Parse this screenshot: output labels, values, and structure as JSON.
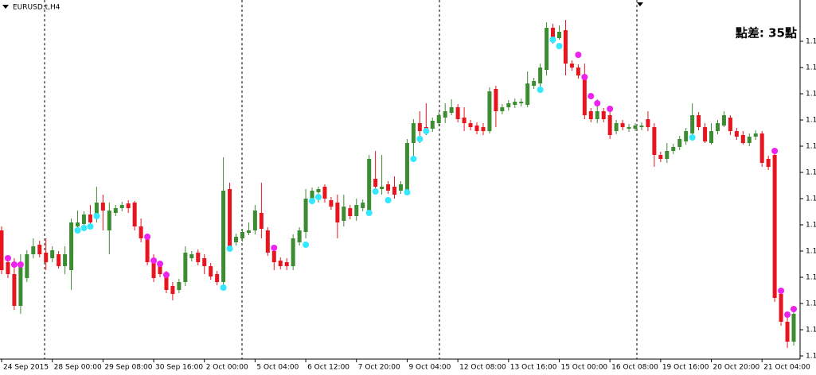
{
  "chart_data": {
    "type": "candlestick",
    "title": "EURUSD.t,H4",
    "annotation": "點差: 35點",
    "up_color": "#3c8c32",
    "down_color": "#e8141e",
    "annotation_color": "#1e7d1e",
    "ylim": [
      1.105,
      1.1502
    ],
    "yticks": [
      {
        "value": 1.1054,
        "label": "1.1"
      },
      {
        "value": 1.1087,
        "label": "1.1"
      },
      {
        "value": 1.112,
        "label": "1.1"
      },
      {
        "value": 1.1153,
        "label": "1.1"
      },
      {
        "value": 1.1186,
        "label": "1.1"
      },
      {
        "value": 1.1219,
        "label": "1.1"
      },
      {
        "value": 1.1252,
        "label": "1.1"
      },
      {
        "value": 1.1285,
        "label": "1.1"
      },
      {
        "value": 1.1318,
        "label": "1.1"
      },
      {
        "value": 1.1351,
        "label": "1.1"
      },
      {
        "value": 1.1384,
        "label": "1.1"
      },
      {
        "value": 1.1417,
        "label": "1.1"
      },
      {
        "value": 1.145,
        "label": "1.1"
      }
    ],
    "categories": [
      "24 Sep 2015",
      null,
      null,
      null,
      null,
      null,
      null,
      null,
      "28 Sep 00:00",
      null,
      null,
      null,
      null,
      null,
      null,
      null,
      "29 Sep 08:00",
      null,
      null,
      null,
      null,
      null,
      null,
      null,
      "30 Sep 16:00",
      null,
      null,
      null,
      null,
      null,
      null,
      null,
      "2 Oct 00:00",
      null,
      null,
      null,
      null,
      null,
      null,
      null,
      "5 Oct 04:00",
      null,
      null,
      null,
      null,
      null,
      null,
      null,
      "6 Oct 12:00",
      null,
      null,
      null,
      null,
      null,
      null,
      null,
      "7 Oct 20:00",
      null,
      null,
      null,
      null,
      null,
      null,
      null,
      "9 Oct 04:00",
      null,
      null,
      null,
      null,
      null,
      null,
      null,
      "12 Oct 08:00",
      null,
      null,
      null,
      null,
      null,
      null,
      null,
      "13 Oct 16:00",
      null,
      null,
      null,
      null,
      null,
      null,
      null,
      "15 Oct 00:00",
      null,
      null,
      null,
      null,
      null,
      null,
      null,
      "16 Oct 08:00",
      null,
      null,
      null,
      null,
      null,
      null,
      null,
      "19 Oct 16:00",
      null,
      null,
      null,
      null,
      null,
      null,
      null,
      "20 Oct 20:00",
      null,
      null,
      null,
      null,
      null,
      null,
      null,
      "21 Oct 04:00",
      null,
      null,
      null,
      null,
      null
    ],
    "open": [
      1.1212,
      1.1172,
      1.1157,
      1.1117,
      1.1152,
      1.1182,
      1.1194,
      1.1184,
      1.1177,
      1.1182,
      1.1167,
      1.1162,
      1.1217,
      1.122,
      1.1232,
      1.1227,
      1.1247,
      1.1212,
      1.1234,
      1.124,
      1.1246,
      1.1247,
      1.1217,
      1.1202,
      1.1172,
      1.1167,
      1.1157,
      1.1142,
      1.1137,
      1.1147,
      1.1177,
      1.1184,
      1.1177,
      1.1167,
      1.1157,
      1.1147,
      1.1264,
      1.1197,
      1.1202,
      1.1209,
      1.1212,
      1.1234,
      1.1212,
      1.1186,
      1.1174,
      1.1172,
      1.1167,
      1.1197,
      1.121,
      1.125,
      1.126,
      1.1267,
      1.125,
      1.1247,
      1.1224,
      1.124,
      1.123,
      1.124,
      1.1237,
      1.1277,
      1.1264,
      1.127,
      1.1267,
      1.1262,
      1.1262,
      1.1322,
      1.1347,
      1.1342,
      1.134,
      1.1347,
      1.1354,
      1.136,
      1.1367,
      1.1354,
      1.1347,
      1.1344,
      1.1342,
      1.1337,
      1.139,
      1.1362,
      1.1367,
      1.137,
      1.1372,
      1.137,
      1.1394,
      1.1397,
      1.1414,
      1.1467,
      1.1454,
      1.1464,
      1.1422,
      1.1417,
      1.1407,
      1.1362,
      1.1352,
      1.1362,
      1.1357,
      1.1337,
      1.1347,
      1.134,
      1.134,
      1.1342,
      1.1352,
      1.1342,
      1.1307,
      1.1302,
      1.1312,
      1.1317,
      1.1324,
      1.1334,
      1.1357,
      1.1342,
      1.1322,
      1.1337,
      1.1344,
      1.1354,
      1.1337,
      1.1332,
      1.1322,
      1.133,
      1.1334,
      1.1302,
      1.1307,
      1.1132,
      1.1097,
      1.1072
    ],
    "high": [
      1.1217,
      1.1177,
      1.1177,
      1.1182,
      1.1187,
      1.1202,
      1.1199,
      1.1202,
      1.1192,
      1.1186,
      1.1192,
      1.1227,
      1.1237,
      1.1236,
      1.1244,
      1.1267,
      1.1257,
      1.1247,
      1.1244,
      1.1248,
      1.125,
      1.1249,
      1.1227,
      1.1206,
      1.1182,
      1.1171,
      1.1161,
      1.1147,
      1.1151,
      1.1192,
      1.1186,
      1.1188,
      1.1182,
      1.1171,
      1.1161,
      1.1304,
      1.1272,
      1.1208,
      1.1214,
      1.1222,
      1.1244,
      1.1272,
      1.1216,
      1.1192,
      1.1178,
      1.1177,
      1.1207,
      1.1216,
      1.1264,
      1.1266,
      1.1267,
      1.127,
      1.1254,
      1.1257,
      1.1257,
      1.1244,
      1.1252,
      1.1251,
      1.1307,
      1.1312,
      1.1307,
      1.1274,
      1.128,
      1.1274,
      1.1327,
      1.1352,
      1.1362,
      1.1372,
      1.1354,
      1.1361,
      1.1372,
      1.1377,
      1.1371,
      1.1367,
      1.1351,
      1.1348,
      1.1347,
      1.1392,
      1.1394,
      1.1371,
      1.1376,
      1.1378,
      1.1378,
      1.1412,
      1.1404,
      1.1422,
      1.1474,
      1.1472,
      1.147,
      1.1477,
      1.1426,
      1.1421,
      1.1422,
      1.1366,
      1.1377,
      1.1366,
      1.1367,
      1.1351,
      1.1351,
      1.1346,
      1.1347,
      1.1348,
      1.1362,
      1.1347,
      1.1311,
      1.1322,
      1.1321,
      1.1331,
      1.1341,
      1.1372,
      1.1361,
      1.1347,
      1.1347,
      1.1351,
      1.1362,
      1.1357,
      1.1341,
      1.1337,
      1.1334,
      1.1338,
      1.1337,
      1.1306,
      1.1312,
      1.1137,
      1.1107,
      1.1112
    ],
    "low": [
      1.1157,
      1.1152,
      1.1112,
      1.1107,
      1.1147,
      1.1177,
      1.1178,
      1.1162,
      1.1172,
      1.1164,
      1.1157,
      1.1137,
      1.1212,
      1.1216,
      1.1217,
      1.1222,
      1.1212,
      1.1182,
      1.123,
      1.1236,
      1.1234,
      1.1212,
      1.1197,
      1.1168,
      1.1147,
      1.1153,
      1.1133,
      1.1124,
      1.1133,
      1.1142,
      1.1173,
      1.1168,
      1.1157,
      1.115,
      1.1143,
      1.1142,
      1.1187,
      1.1193,
      1.1198,
      1.1206,
      1.1207,
      1.1202,
      1.118,
      1.1162,
      1.1163,
      1.1162,
      1.1162,
      1.1193,
      1.1202,
      1.1246,
      1.1247,
      1.1247,
      1.1238,
      1.1202,
      1.1217,
      1.1226,
      1.1224,
      1.1236,
      1.1232,
      1.1262,
      1.1257,
      1.1258,
      1.1252,
      1.1258,
      1.1257,
      1.1302,
      1.1322,
      1.1332,
      1.1336,
      1.1343,
      1.1347,
      1.1357,
      1.1348,
      1.1337,
      1.1338,
      1.1333,
      1.1332,
      1.1334,
      1.1342,
      1.1358,
      1.1363,
      1.1366,
      1.1368,
      1.1367,
      1.139,
      1.1392,
      1.1407,
      1.1447,
      1.1452,
      1.1407,
      1.1413,
      1.1403,
      1.1352,
      1.1348,
      1.1347,
      1.1348,
      1.1327,
      1.1333,
      1.1338,
      1.1336,
      1.1337,
      1.1338,
      1.1337,
      1.1292,
      1.1298,
      1.1297,
      1.1308,
      1.1313,
      1.132,
      1.1332,
      1.1338,
      1.1322,
      1.132,
      1.1333,
      1.1342,
      1.1332,
      1.1326,
      1.132,
      1.1318,
      1.1326,
      1.1292,
      1.1288,
      1.1122,
      1.1092,
      1.1064,
      1.1067
    ],
    "close": [
      1.1162,
      1.1157,
      1.1117,
      1.1172,
      1.1182,
      1.1192,
      1.1182,
      1.1172,
      1.1187,
      1.1167,
      1.1182,
      1.1222,
      1.1222,
      1.1232,
      1.1222,
      1.1247,
      1.1237,
      1.1237,
      1.124,
      1.1244,
      1.124,
      1.1217,
      1.1202,
      1.1172,
      1.1152,
      1.1157,
      1.1137,
      1.1132,
      1.1147,
      1.1184,
      1.1182,
      1.1172,
      1.1167,
      1.1154,
      1.1147,
      1.1262,
      1.1192,
      1.1204,
      1.121,
      1.1212,
      1.1237,
      1.1214,
      1.1184,
      1.1172,
      1.1167,
      1.1167,
      1.1202,
      1.1212,
      1.1252,
      1.1262,
      1.1264,
      1.1252,
      1.1242,
      1.1222,
      1.1242,
      1.123,
      1.1244,
      1.1247,
      1.1302,
      1.1267,
      1.1267,
      1.1262,
      1.1257,
      1.127,
      1.1322,
      1.1347,
      1.1337,
      1.1337,
      1.135,
      1.1357,
      1.1362,
      1.1367,
      1.1352,
      1.1347,
      1.1342,
      1.1337,
      1.1337,
      1.1387,
      1.1362,
      1.1367,
      1.1372,
      1.1374,
      1.1374,
      1.1397,
      1.14,
      1.1417,
      1.1467,
      1.1452,
      1.1462,
      1.1422,
      1.1417,
      1.1407,
      1.1357,
      1.1352,
      1.1362,
      1.1352,
      1.1332,
      1.1347,
      1.1342,
      1.1342,
      1.1344,
      1.1344,
      1.1342,
      1.1307,
      1.1302,
      1.1312,
      1.1317,
      1.1327,
      1.1337,
      1.1357,
      1.1342,
      1.1324,
      1.1337,
      1.1347,
      1.1357,
      1.1337,
      1.133,
      1.1322,
      1.133,
      1.1334,
      1.1297,
      1.1292,
      1.1127,
      1.1097,
      1.1072,
      1.1107
    ],
    "markers": [
      {
        "color": "#33e8ff",
        "x": [
          12,
          13,
          14,
          15,
          35,
          36,
          48,
          49,
          50,
          58,
          59,
          61,
          64,
          65,
          66,
          67,
          85,
          87,
          88,
          109
        ],
        "values": [
          1.1212,
          1.1215,
          1.1217,
          1.123,
          1.114,
          1.1189,
          1.1194,
          1.1249,
          1.1254,
          1.1234,
          1.1261,
          1.125,
          1.126,
          1.1302,
          1.1327,
          1.1337,
          1.1389,
          1.1452,
          1.1444,
          1.1329
        ]
      },
      {
        "color": "#ee22ee",
        "x": [
          1,
          2,
          3,
          23,
          24,
          25,
          26,
          43,
          91,
          92,
          93,
          94,
          96,
          122,
          123,
          124,
          125
        ],
        "values": [
          1.1177,
          1.1169,
          1.1169,
          1.1204,
          1.1174,
          1.117,
          1.1156,
          1.119,
          1.1433,
          1.1405,
          1.1381,
          1.1372,
          1.1365,
          1.1312,
          1.1136,
          1.1106,
          1.1113
        ]
      }
    ]
  }
}
